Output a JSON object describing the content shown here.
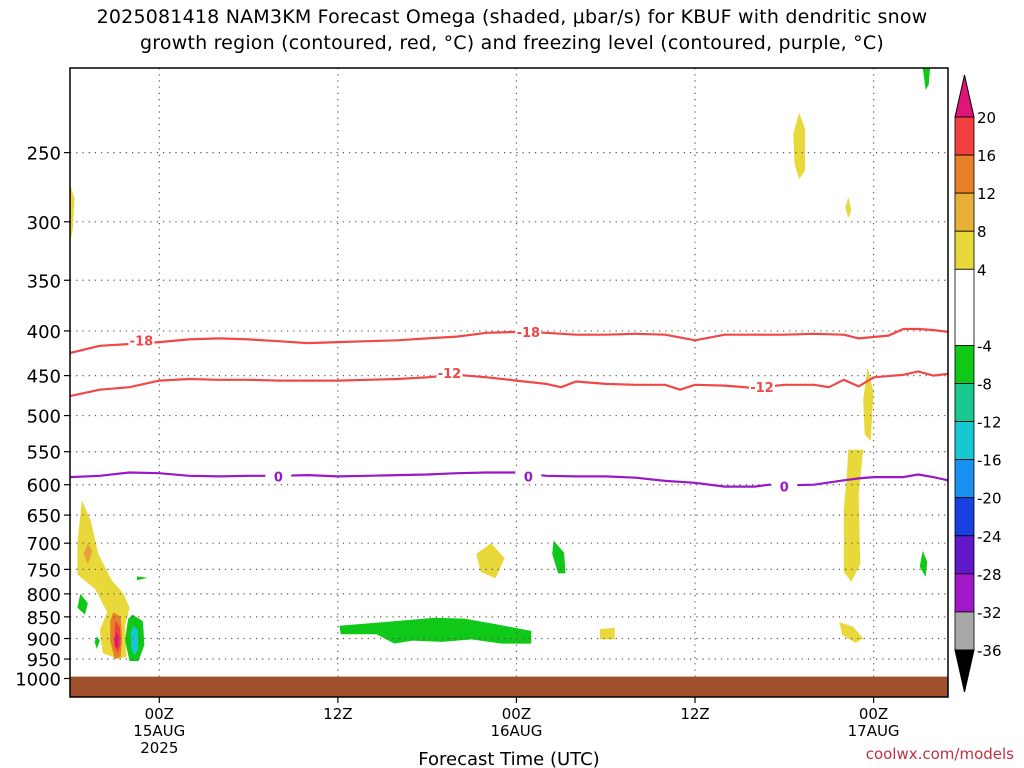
{
  "header": {
    "title_line1": "2025081418 NAM3KM Forecast Omega (shaded, μbar/s) for KBUF with dendritic snow",
    "title_line2": "growth region (contoured, red, °C) and freezing level (contoured, purple, °C)"
  },
  "footer": {
    "credit": "coolwx.com/models"
  },
  "chart_data": {
    "type": "heatmap",
    "title": "2025081418 NAM3KM Forecast Omega (shaded, μbar/s) for KBUF with dendritic snow growth region (contoured, red, °C) and freezing level (contoured, purple, °C)",
    "xlabel": "Forecast Time (UTC)",
    "ylabel": "",
    "x_unit": "hours from 2025-08-15 00Z",
    "xlim": [
      -6.0,
      53.0
    ],
    "ylim_hPa": [
      200,
      1050
    ],
    "y_scale": "log (pressure, inverted)",
    "grid": true,
    "x_ticks": [
      {
        "x": 0,
        "label": "00Z",
        "sub1": "15AUG",
        "sub2": "2025"
      },
      {
        "x": 12,
        "label": "12Z",
        "sub1": "",
        "sub2": ""
      },
      {
        "x": 24,
        "label": "00Z",
        "sub1": "16AUG",
        "sub2": ""
      },
      {
        "x": 36,
        "label": "12Z",
        "sub1": "",
        "sub2": ""
      },
      {
        "x": 48,
        "label": "00Z",
        "sub1": "17AUG",
        "sub2": ""
      }
    ],
    "y_ticks": [
      250,
      300,
      350,
      400,
      450,
      500,
      550,
      600,
      650,
      700,
      750,
      800,
      850,
      900,
      950,
      1000
    ],
    "colorbar": {
      "ticks": [
        20,
        16,
        12,
        8,
        4,
        -4,
        -8,
        -12,
        -16,
        -20,
        -24,
        -28,
        -32,
        -36
      ],
      "bands": [
        {
          "from": 16,
          "to": 20,
          "color": "#f04040"
        },
        {
          "from": 12,
          "to": 16,
          "color": "#e8802a"
        },
        {
          "from": 8,
          "to": 12,
          "color": "#e8b038"
        },
        {
          "from": 4,
          "to": 8,
          "color": "#e8d83a"
        },
        {
          "from": -4,
          "to": 4,
          "color": "#ffffff"
        },
        {
          "from": -8,
          "to": -4,
          "color": "#10c818"
        },
        {
          "from": -12,
          "to": -8,
          "color": "#18c890"
        },
        {
          "from": -16,
          "to": -12,
          "color": "#18c8d0"
        },
        {
          "from": -20,
          "to": -16,
          "color": "#1890f0"
        },
        {
          "from": -24,
          "to": -20,
          "color": "#1840e0"
        },
        {
          "from": -28,
          "to": -24,
          "color": "#6018c8"
        },
        {
          "from": -32,
          "to": -28,
          "color": "#a018c8"
        },
        {
          "from": -36,
          "to": -32,
          "color": "#a8a8a8"
        }
      ],
      "top_extension_color": "#e0157a",
      "bottom_extension_color": "#000000"
    },
    "terrain": {
      "color": "#a0522d",
      "top_hPa": 995
    },
    "contours": [
      {
        "name": "-18",
        "color": "#f04848",
        "labels": [
          {
            "x": -1.2,
            "p": 410,
            "text": "-18"
          },
          {
            "x": 24.8,
            "p": 401,
            "text": "-18"
          }
        ],
        "points": [
          [
            -6,
            424
          ],
          [
            -4,
            416
          ],
          [
            -2,
            414
          ],
          [
            0,
            412
          ],
          [
            2,
            409
          ],
          [
            4,
            408
          ],
          [
            6,
            409
          ],
          [
            8,
            411
          ],
          [
            10,
            413
          ],
          [
            12,
            412
          ],
          [
            14,
            411
          ],
          [
            16,
            410
          ],
          [
            18,
            408
          ],
          [
            20,
            406
          ],
          [
            22,
            402
          ],
          [
            24,
            401
          ],
          [
            26,
            402
          ],
          [
            28,
            404
          ],
          [
            30,
            404
          ],
          [
            32,
            403
          ],
          [
            34,
            404
          ],
          [
            36,
            410
          ],
          [
            38,
            404
          ],
          [
            40,
            404
          ],
          [
            42,
            404
          ],
          [
            44,
            403
          ],
          [
            46,
            404
          ],
          [
            47,
            408
          ],
          [
            49,
            405
          ],
          [
            50,
            398
          ],
          [
            51,
            398
          ],
          [
            52,
            399
          ],
          [
            53,
            401
          ]
        ]
      },
      {
        "name": "-12",
        "color": "#f04848",
        "labels": [
          {
            "x": 19.5,
            "p": 447,
            "text": "-12"
          },
          {
            "x": 40.5,
            "p": 464,
            "text": "-12"
          }
        ],
        "points": [
          [
            -6,
            475
          ],
          [
            -4,
            467
          ],
          [
            -2,
            464
          ],
          [
            0,
            456
          ],
          [
            2,
            454
          ],
          [
            4,
            455
          ],
          [
            6,
            455
          ],
          [
            8,
            456
          ],
          [
            10,
            456
          ],
          [
            12,
            456
          ],
          [
            14,
            455
          ],
          [
            16,
            454
          ],
          [
            18,
            452
          ],
          [
            20,
            449
          ],
          [
            22,
            452
          ],
          [
            24,
            456
          ],
          [
            26,
            460
          ],
          [
            27,
            464
          ],
          [
            28,
            457
          ],
          [
            30,
            460
          ],
          [
            32,
            461
          ],
          [
            34,
            461
          ],
          [
            35,
            467
          ],
          [
            36,
            461
          ],
          [
            38,
            462
          ],
          [
            40,
            465
          ],
          [
            42,
            461
          ],
          [
            44,
            461
          ],
          [
            45,
            464
          ],
          [
            46,
            455
          ],
          [
            47,
            463
          ],
          [
            48,
            452
          ],
          [
            50,
            449
          ],
          [
            51,
            445
          ],
          [
            52,
            450
          ],
          [
            53,
            448
          ]
        ]
      },
      {
        "name": "0",
        "color": "#9a18c8",
        "labels": [
          {
            "x": 8.0,
            "p": 587,
            "text": "0"
          },
          {
            "x": 24.8,
            "p": 587,
            "text": "0"
          },
          {
            "x": 42.0,
            "p": 603,
            "text": "0"
          }
        ],
        "points": [
          [
            -6,
            588
          ],
          [
            -4,
            586
          ],
          [
            -2,
            581
          ],
          [
            0,
            582
          ],
          [
            2,
            586
          ],
          [
            4,
            587
          ],
          [
            6,
            586
          ],
          [
            8,
            586
          ],
          [
            10,
            585
          ],
          [
            12,
            587
          ],
          [
            14,
            586
          ],
          [
            16,
            585
          ],
          [
            18,
            584
          ],
          [
            20,
            582
          ],
          [
            22,
            581
          ],
          [
            24,
            581
          ],
          [
            26,
            586
          ],
          [
            28,
            587
          ],
          [
            30,
            587
          ],
          [
            32,
            589
          ],
          [
            34,
            594
          ],
          [
            36,
            597
          ],
          [
            38,
            603
          ],
          [
            40,
            603
          ],
          [
            41,
            600
          ],
          [
            42,
            601
          ],
          [
            44,
            600
          ],
          [
            46,
            593
          ],
          [
            47,
            590
          ],
          [
            48,
            588
          ],
          [
            50,
            588
          ],
          [
            51,
            584
          ],
          [
            52,
            588
          ],
          [
            53,
            593
          ]
        ]
      }
    ],
    "regions": [
      {
        "label": "green top-right",
        "color": "#10c818",
        "pts": [
          [
            51.3,
            200
          ],
          [
            51.8,
            200
          ],
          [
            51.7,
            209
          ],
          [
            51.5,
            212
          ]
        ]
      },
      {
        "label": "yellow left edge",
        "color": "#e8d83a",
        "pts": [
          [
            -6.0,
            272
          ],
          [
            -5.7,
            282
          ],
          [
            -5.8,
            305
          ],
          [
            -6.0,
            318
          ]
        ]
      },
      {
        "label": "yellow upper",
        "color": "#e8d83a",
        "pts": [
          [
            43.0,
            225
          ],
          [
            43.4,
            235
          ],
          [
            43.4,
            262
          ],
          [
            43.0,
            268
          ],
          [
            42.7,
            258
          ],
          [
            42.6,
            238
          ]
        ]
      },
      {
        "label": "yellow small upper",
        "color": "#e8d83a",
        "pts": [
          [
            46.3,
            281
          ],
          [
            46.5,
            291
          ],
          [
            46.3,
            297
          ],
          [
            46.1,
            289
          ]
        ]
      },
      {
        "label": "yellow tall right",
        "color": "#e8d83a",
        "pts": [
          [
            46.3,
            547
          ],
          [
            47.3,
            547
          ],
          [
            47.0,
            615
          ],
          [
            47.1,
            740
          ],
          [
            46.5,
            775
          ],
          [
            46.0,
            755
          ],
          [
            46.0,
            640
          ],
          [
            46.2,
            585
          ]
        ]
      },
      {
        "label": "yellow slim right",
        "color": "#e8d83a",
        "pts": [
          [
            47.6,
            440
          ],
          [
            48.0,
            470
          ],
          [
            47.8,
            535
          ],
          [
            47.4,
            525
          ],
          [
            47.3,
            480
          ]
        ]
      },
      {
        "label": "yellow low right",
        "color": "#e8d83a",
        "pts": [
          [
            45.7,
            862
          ],
          [
            46.6,
            872
          ],
          [
            47.3,
            900
          ],
          [
            46.8,
            910
          ],
          [
            45.9,
            892
          ]
        ]
      },
      {
        "label": "yellow mid",
        "color": "#e8d83a",
        "pts": [
          [
            21.3,
            720
          ],
          [
            22.3,
            700
          ],
          [
            23.2,
            728
          ],
          [
            22.6,
            768
          ],
          [
            21.6,
            755
          ]
        ]
      },
      {
        "label": "yellow small mid",
        "color": "#e8d83a",
        "pts": [
          [
            29.6,
            878
          ],
          [
            30.6,
            875
          ],
          [
            30.6,
            902
          ],
          [
            29.6,
            902
          ]
        ]
      },
      {
        "label": "green mid",
        "color": "#10c818",
        "pts": [
          [
            26.5,
            695
          ],
          [
            27.2,
            718
          ],
          [
            27.3,
            758
          ],
          [
            26.8,
            758
          ],
          [
            26.4,
            720
          ]
        ]
      },
      {
        "label": "green right",
        "color": "#10c818",
        "pts": [
          [
            51.3,
            714
          ],
          [
            51.6,
            735
          ],
          [
            51.5,
            765
          ],
          [
            51.1,
            745
          ]
        ]
      },
      {
        "label": "green band",
        "color": "#10c818",
        "pts": [
          [
            12.1,
            870
          ],
          [
            15.0,
            862
          ],
          [
            18.5,
            852
          ],
          [
            20.5,
            854
          ],
          [
            22.5,
            866
          ],
          [
            25.0,
            882
          ],
          [
            25.0,
            912
          ],
          [
            23.0,
            912
          ],
          [
            21.0,
            902
          ],
          [
            19.0,
            908
          ],
          [
            17.0,
            905
          ],
          [
            15.8,
            912
          ],
          [
            14.6,
            890
          ],
          [
            12.2,
            890
          ]
        ]
      },
      {
        "label": "yellow left plume",
        "color": "#e8d83a",
        "pts": [
          [
            -5.2,
            625
          ],
          [
            -4.6,
            660
          ],
          [
            -4.1,
            720
          ],
          [
            -3.2,
            772
          ],
          [
            -2.4,
            800
          ],
          [
            -2.0,
            830
          ],
          [
            -2.3,
            870
          ],
          [
            -2.2,
            945
          ],
          [
            -2.8,
            950
          ],
          [
            -3.8,
            935
          ],
          [
            -4.0,
            880
          ],
          [
            -3.5,
            840
          ],
          [
            -4.3,
            790
          ],
          [
            -5.5,
            760
          ],
          [
            -5.5,
            700
          ]
        ]
      },
      {
        "label": "orange left",
        "color": "#e8a038",
        "pts": [
          [
            -4.8,
            700
          ],
          [
            -4.5,
            715
          ],
          [
            -4.8,
            740
          ],
          [
            -5.1,
            720
          ]
        ]
      },
      {
        "label": "orange core",
        "color": "#e8802a",
        "pts": [
          [
            -3.1,
            840
          ],
          [
            -2.6,
            850
          ],
          [
            -2.5,
            900
          ],
          [
            -2.6,
            945
          ],
          [
            -3.0,
            950
          ],
          [
            -3.3,
            905
          ],
          [
            -3.3,
            860
          ]
        ]
      },
      {
        "label": "red core",
        "color": "#f04040",
        "pts": [
          [
            -2.95,
            858
          ],
          [
            -2.65,
            875
          ],
          [
            -2.6,
            915
          ],
          [
            -2.8,
            935
          ],
          [
            -3.05,
            915
          ]
        ]
      },
      {
        "label": "magenta core",
        "color": "#e0157a",
        "pts": [
          [
            -2.9,
            885
          ],
          [
            -2.75,
            893
          ],
          [
            -2.75,
            918
          ],
          [
            -2.9,
            923
          ],
          [
            -3.0,
            905
          ]
        ]
      },
      {
        "label": "green left small",
        "color": "#10c818",
        "pts": [
          [
            -5.3,
            800
          ],
          [
            -4.8,
            820
          ],
          [
            -5.0,
            845
          ],
          [
            -5.5,
            830
          ]
        ]
      },
      {
        "label": "green left dot",
        "color": "#10c818",
        "pts": [
          [
            -1.5,
            764
          ],
          [
            -0.8,
            767
          ],
          [
            -1.5,
            772
          ]
        ]
      },
      {
        "label": "green left tiny",
        "color": "#10c818",
        "pts": [
          [
            -4.2,
            895
          ],
          [
            -4.0,
            905
          ],
          [
            -4.2,
            925
          ],
          [
            -4.35,
            908
          ]
        ]
      },
      {
        "label": "green left tower",
        "color": "#10c818",
        "pts": [
          [
            -1.8,
            845
          ],
          [
            -1.1,
            860
          ],
          [
            -1.0,
            915
          ],
          [
            -1.4,
            955
          ],
          [
            -2.0,
            955
          ],
          [
            -2.3,
            905
          ],
          [
            -2.1,
            855
          ]
        ]
      },
      {
        "label": "cyan left tower",
        "color": "#18c8d0",
        "pts": [
          [
            -1.75,
            870
          ],
          [
            -1.45,
            880
          ],
          [
            -1.4,
            925
          ],
          [
            -1.7,
            942
          ],
          [
            -1.9,
            920
          ],
          [
            -1.9,
            885
          ]
        ]
      }
    ]
  }
}
